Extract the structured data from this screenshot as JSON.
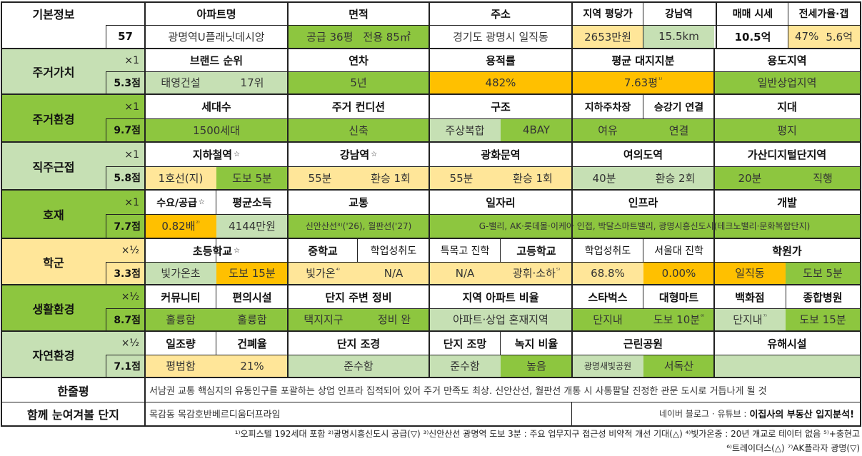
{
  "basic": {
    "label": "기본정보",
    "number": "57",
    "headers": {
      "apt": "아파트명",
      "area": "면적",
      "address": "주소",
      "price_area": "지역 평당가",
      "gangnam": "강남역",
      "sale": "매매 시세",
      "jeonse": "전세가율·갭"
    },
    "values": {
      "apt": "광명역U플래닛데시앙",
      "area_supply": "공급 36평",
      "area_exclusive": "전용 85㎡",
      "address": "경기도 광명시 일직동",
      "price_area": "2653만원",
      "gangnam": "15.5km",
      "sale": "10.5억",
      "jeonse_rate": "47%",
      "jeonse_gap": "5.6억"
    }
  },
  "sections": {
    "living_value": {
      "label": "주거가치",
      "weight": "×1",
      "score": "5.3점",
      "headers": {
        "brand": "브랜드 순위",
        "age": "연차",
        "far": "용적률",
        "land": "평균 대지지분",
        "zone": "용도지역"
      },
      "values": {
        "brand_name": "태영건설",
        "brand_rank": "17위",
        "age": "5년",
        "far": "482%",
        "land": "7.63평",
        "land_note": "¹⁾",
        "zone": "일반상업지역"
      }
    },
    "living_env": {
      "label": "주거환경",
      "weight": "×1",
      "score": "9.7점",
      "headers": {
        "households": "세대수",
        "condition": "주거 컨디션",
        "structure": "구조",
        "parking": "지하주차장",
        "elevator": "승강기 연결",
        "terrain": "지대"
      },
      "values": {
        "households": "1500세대",
        "condition": "신축",
        "structure_type": "주상복합",
        "structure_bay": "4BAY",
        "parking": "여유",
        "elevator": "연결",
        "terrain": "평지"
      }
    },
    "commute": {
      "label": "직주근접",
      "weight": "×1",
      "score": "5.8점",
      "headers": {
        "subway": "지하철역",
        "gangnam": "강남역",
        "gwanghwamun": "광화문역",
        "yeouido": "여의도역",
        "gasan": "가산디지털단지역"
      },
      "star": "☆",
      "values": {
        "subway_line": "1호선(지)",
        "subway_walk": "도보 5분",
        "gangnam_time": "55분",
        "gangnam_transfer": "환승 1회",
        "gwanghwamun_time": "55분",
        "gwanghwamun_transfer": "환승 1회",
        "yeouido_time": "40분",
        "yeouido_transfer": "환승 2회",
        "gasan_time": "20분",
        "gasan_transfer": "직행"
      }
    },
    "development": {
      "label": "호재",
      "weight": "×1",
      "score": "7.7점",
      "headers": {
        "supply": "수요/공급",
        "income": "평균소득",
        "transport": "교통",
        "jobs": "일자리",
        "infra": "인프라",
        "develop": "개발"
      },
      "star": "☆",
      "values": {
        "supply": "0.82배",
        "supply_note": "²⁾",
        "income": "4144만원",
        "transport": "신안산선³⁾('26), 월판선('27)",
        "jobs_infra_develop": "G-밸리, AK·롯데몰·이케아 인접, 박달스마트밸리, 광명시흥신도시(테크노밸리·문화복합단지)"
      }
    },
    "school": {
      "label": "학군",
      "weight": "×½",
      "score": "3.3점",
      "headers": {
        "elementary": "초등학교",
        "middle": "중학교",
        "middle_perf": "학업성취도",
        "sci_high": "특목고 진학",
        "high": "고등학교",
        "high_perf": "학업성취도",
        "snu": "서울대 진학",
        "academy": "학원가"
      },
      "star": "☆",
      "values": {
        "elementary_name": "빛가온초",
        "elementary_walk": "도보 15분",
        "middle": "빛가온",
        "middle_note": "⁴⁾",
        "middle_perf": "N/A",
        "sci_high": "N/A",
        "high": "광휘·소하",
        "high_note": "⁵⁾",
        "high_perf": "68.8%",
        "snu": "0.00%",
        "academy_name": "일직동",
        "academy_walk": "도보 5분"
      }
    },
    "life_env": {
      "label": "생활환경",
      "weight": "×½",
      "score": "8.7점",
      "headers": {
        "community": "커뮤니티",
        "convenience": "편의시설",
        "surroundings": "단지 주변 정비",
        "ratio": "지역 아파트 비율",
        "starbucks": "스타벅스",
        "mart": "대형마트",
        "dept": "백화점",
        "hospital": "종합병원"
      },
      "values": {
        "community": "훌륭함",
        "convenience": "훌륭함",
        "surround_area": "택지지구",
        "surround_status": "정비 완",
        "ratio": "아파트·상업 혼재지역",
        "starbucks": "단지내",
        "mart": "도보 10분",
        "mart_note": "⁶⁾",
        "dept": "단지내",
        "dept_note": "⁷⁾",
        "hospital": "도보 15분"
      }
    },
    "nature_env": {
      "label": "자연환경",
      "weight": "×½",
      "score": "7.1점",
      "headers": {
        "sunlight": "일조량",
        "coverage": "건폐율",
        "landscape": "단지 조경",
        "view": "단지 조망",
        "green": "녹지 비율",
        "park": "근린공원",
        "hazard": "유해시설"
      },
      "values": {
        "sunlight": "평범함",
        "coverage": "21%",
        "landscape": "준수함",
        "view": "준수함",
        "green": "높음",
        "park_name": "광명새빛공원",
        "park_status": "서독산",
        "hazard": ""
      }
    }
  },
  "summary": {
    "label": "한줄평",
    "text": "서남권 교통 핵심지의 유동인구를 포괄하는 상업 인프라 집적되어 있어 주거 만족도 최상. 신안산선, 월판선 개통 시 사통팔달 진정한 관문 도시로 거듭나게 될 것"
  },
  "related": {
    "label": "함께 눈여겨볼 단지",
    "text": "목감동 목감호반베르디움더프라임",
    "credit_prefix": "네이버 블로그 · 유튜브 : ",
    "credit_bold": "이집사의 부동산 입지분석!"
  },
  "footnotes": {
    "line1": "¹⁾오피스텔 192세대 포함 ²⁾광명시흥신도시 공급(▽) ³⁾신안산선 광명역 도보 3분 : 주요 업무지구 접근성 비약적 개선 기대(△) ⁴⁾빛가온중 : 20년 개교로 테이터 없음 ⁵⁾+충현고",
    "line2": "⁶⁾트레이더스(△) ⁷⁾AK플라자 광명(▽)"
  },
  "colors": {
    "light_green": "#c6e0b4",
    "green": "#8dc63f",
    "orange": "#ffc000",
    "light_yellow": "#ffe699"
  }
}
